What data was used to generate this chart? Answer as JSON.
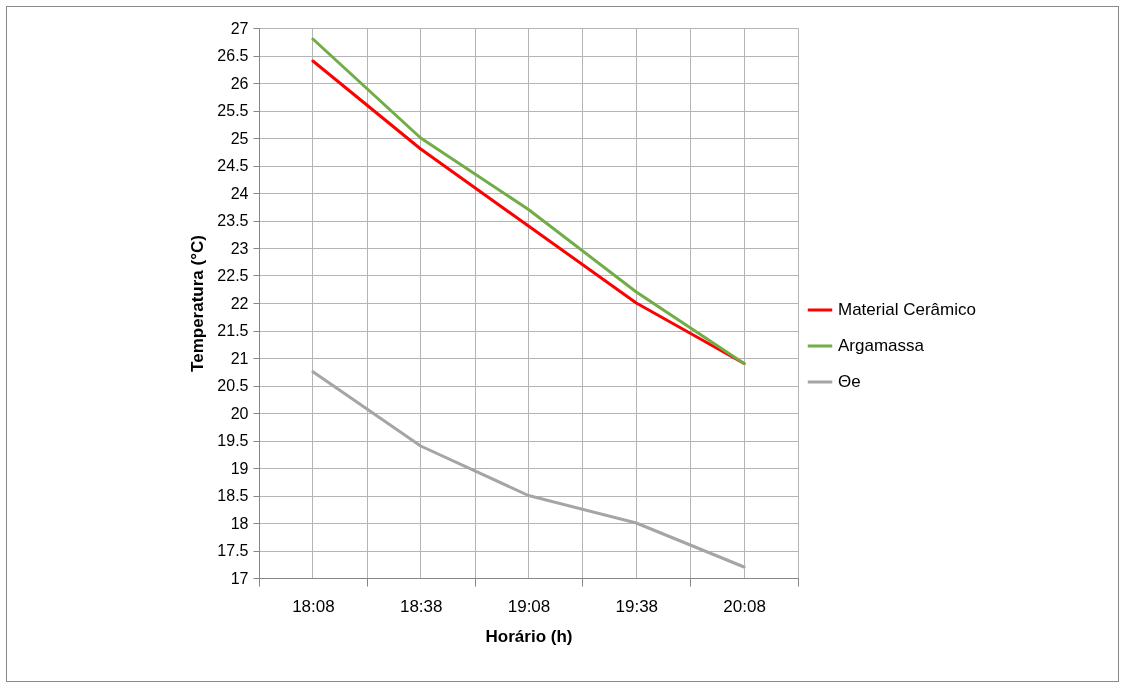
{
  "chart_data": {
    "type": "line",
    "xlabel": "Horário (h)",
    "ylabel": "Temperatura (°C)",
    "categories": [
      "18:08",
      "18:38",
      "19:08",
      "19:38",
      "20:08"
    ],
    "series": [
      {
        "name": "Material Cerâmico",
        "color": "#ff0000",
        "values": [
          26.4,
          24.8,
          23.4,
          22.0,
          20.9
        ]
      },
      {
        "name": "Argamassa",
        "color": "#70ad47",
        "values": [
          26.8,
          25.0,
          23.7,
          22.2,
          20.9
        ]
      },
      {
        "name": "Θe",
        "color": "#a5a5a5",
        "values": [
          20.75,
          19.4,
          18.5,
          18.0,
          17.2
        ]
      }
    ],
    "ylim": [
      17,
      27
    ],
    "yticks": [
      17,
      17.5,
      18,
      18.5,
      19,
      19.5,
      20,
      20.5,
      21,
      21.5,
      22,
      22.5,
      23,
      23.5,
      24,
      24.5,
      25,
      25.5,
      26,
      26.5,
      27
    ],
    "grid": true,
    "legend": "right",
    "marker": "none",
    "line_style": "solid"
  }
}
